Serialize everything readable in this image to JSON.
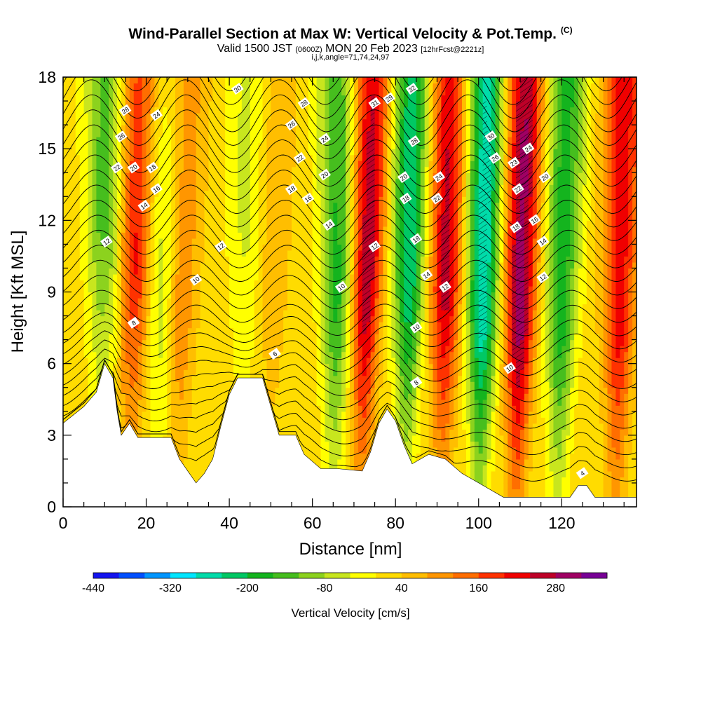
{
  "header": {
    "title": "Wind-Parallel Section at Max W: Vertical Velocity & Pot.Temp.",
    "title_unit": "(C)",
    "valid_prefix": "Valid 1500 JST",
    "valid_utc": "(0600Z)",
    "valid_date": "MON 20 Feb 2023",
    "valid_fcst": "[12hrFcst@2221z]",
    "indices": "i,j,k,angle=71,74,24,97"
  },
  "chart_data": {
    "type": "heatmap",
    "title": "Wind-Parallel Section at Max W: Vertical Velocity & Pot.Temp.",
    "xlabel": "Distance [nm]",
    "ylabel": "Height [Kft MSL]",
    "xlim": [
      0,
      138
    ],
    "ylim": [
      0,
      18
    ],
    "x_ticks": [
      0,
      20,
      40,
      60,
      80,
      100,
      120
    ],
    "y_ticks": [
      0,
      3,
      6,
      9,
      12,
      15,
      18
    ],
    "colorbar": {
      "label": "Vertical Velocity [cm/s]",
      "tick_labels": [
        "-440",
        "-320",
        "-200",
        "-80",
        "40",
        "160",
        "280"
      ],
      "tick_values": [
        -440,
        -320,
        -200,
        -80,
        40,
        160,
        280
      ],
      "levels": [
        -440,
        -400,
        -360,
        -320,
        -280,
        -240,
        -200,
        -160,
        -120,
        -80,
        -40,
        0,
        40,
        80,
        120,
        160,
        200,
        240,
        280,
        320
      ],
      "colors": [
        "#1414f0",
        "#0050ff",
        "#0096ff",
        "#00e6ff",
        "#00dcaa",
        "#00c864",
        "#14b41e",
        "#46be1e",
        "#8cd21e",
        "#c8e61e",
        "#ffff00",
        "#ffdc00",
        "#ffbe00",
        "#ff9600",
        "#ff6e00",
        "#ff3200",
        "#f00000",
        "#be0028",
        "#a00064",
        "#780096"
      ]
    },
    "terrain_kft": [
      [
        0,
        3.5
      ],
      [
        5,
        4.2
      ],
      [
        8,
        4.8
      ],
      [
        10,
        6.0
      ],
      [
        12,
        5.4
      ],
      [
        13,
        4.0
      ],
      [
        14,
        3.0
      ],
      [
        16,
        3.5
      ],
      [
        18,
        2.9
      ],
      [
        26,
        2.9
      ],
      [
        28,
        2.0
      ],
      [
        30,
        1.5
      ],
      [
        32,
        1.0
      ],
      [
        34,
        1.4
      ],
      [
        36,
        2.0
      ],
      [
        38,
        3.4
      ],
      [
        40,
        4.7
      ],
      [
        42,
        5.4
      ],
      [
        48,
        5.4
      ],
      [
        50,
        4.2
      ],
      [
        52,
        3.0
      ],
      [
        56,
        3.0
      ],
      [
        58,
        2.2
      ],
      [
        62,
        1.6
      ],
      [
        66,
        1.6
      ],
      [
        72,
        1.5
      ],
      [
        74,
        2.3
      ],
      [
        76,
        3.5
      ],
      [
        78,
        4.1
      ],
      [
        80,
        3.6
      ],
      [
        82,
        2.6
      ],
      [
        84,
        1.8
      ],
      [
        88,
        2.2
      ],
      [
        92,
        2.0
      ],
      [
        96,
        1.4
      ],
      [
        100,
        1.0
      ],
      [
        106,
        0.4
      ],
      [
        122,
        0.4
      ],
      [
        124,
        0.9
      ],
      [
        126,
        0.9
      ],
      [
        128,
        0.4
      ],
      [
        138,
        0.4
      ]
    ],
    "updrafts": [
      {
        "x": 17,
        "w": 200
      },
      {
        "x": 28,
        "w": 120
      },
      {
        "x": 50,
        "w": 60
      },
      {
        "x": 73,
        "w": 260
      },
      {
        "x": 92,
        "w": 240
      },
      {
        "x": 110,
        "w": 280
      },
      {
        "x": 134,
        "w": 200
      }
    ],
    "downdrafts": [
      {
        "x": 10,
        "w": -180
      },
      {
        "x": 24,
        "w": -120
      },
      {
        "x": 44,
        "w": -80
      },
      {
        "x": 66,
        "w": -200
      },
      {
        "x": 83,
        "w": -260
      },
      {
        "x": 101,
        "w": -300
      },
      {
        "x": 120,
        "w": -200
      }
    ],
    "theta_contours": {
      "levels": [
        6,
        8,
        10,
        12,
        14,
        16,
        18,
        20,
        22,
        24,
        26,
        28,
        30,
        32
      ],
      "labels": [
        {
          "text": "28",
          "x": 15,
          "y": 16.6
        },
        {
          "text": "26",
          "x": 14,
          "y": 15.5
        },
        {
          "text": "24",
          "x": 22.5,
          "y": 16.4
        },
        {
          "text": "22",
          "x": 13,
          "y": 14.2
        },
        {
          "text": "20",
          "x": 17,
          "y": 14.2
        },
        {
          "text": "18",
          "x": 21.5,
          "y": 14.2
        },
        {
          "text": "16",
          "x": 22.5,
          "y": 13.3
        },
        {
          "text": "14",
          "x": 19.5,
          "y": 12.6
        },
        {
          "text": "12",
          "x": 10.5,
          "y": 11.1
        },
        {
          "text": "12",
          "x": 38,
          "y": 10.9
        },
        {
          "text": "10",
          "x": 32,
          "y": 9.5
        },
        {
          "text": "8",
          "x": 17,
          "y": 7.7
        },
        {
          "text": "6",
          "x": 51,
          "y": 6.4
        },
        {
          "text": "30",
          "x": 42,
          "y": 17.5
        },
        {
          "text": "28",
          "x": 58,
          "y": 16.9
        },
        {
          "text": "26",
          "x": 55,
          "y": 16.0
        },
        {
          "text": "24",
          "x": 63,
          "y": 15.4
        },
        {
          "text": "22",
          "x": 57,
          "y": 14.6
        },
        {
          "text": "20",
          "x": 63,
          "y": 13.9
        },
        {
          "text": "18",
          "x": 55,
          "y": 13.3
        },
        {
          "text": "16",
          "x": 59,
          "y": 12.9
        },
        {
          "text": "14",
          "x": 64,
          "y": 11.8
        },
        {
          "text": "10",
          "x": 67,
          "y": 9.2
        },
        {
          "text": "12",
          "x": 75,
          "y": 10.9
        },
        {
          "text": "31",
          "x": 75,
          "y": 16.9
        },
        {
          "text": "29",
          "x": 78.5,
          "y": 17.1
        },
        {
          "text": "32",
          "x": 84,
          "y": 17.5
        },
        {
          "text": "28",
          "x": 84.5,
          "y": 15.3
        },
        {
          "text": "20",
          "x": 82,
          "y": 13.8
        },
        {
          "text": "18",
          "x": 82.5,
          "y": 12.9
        },
        {
          "text": "24",
          "x": 90.5,
          "y": 13.8
        },
        {
          "text": "22",
          "x": 90,
          "y": 12.9
        },
        {
          "text": "18",
          "x": 85,
          "y": 11.2
        },
        {
          "text": "14",
          "x": 87.5,
          "y": 9.7
        },
        {
          "text": "12",
          "x": 92,
          "y": 9.2
        },
        {
          "text": "10",
          "x": 85,
          "y": 7.5
        },
        {
          "text": "8",
          "x": 85,
          "y": 5.2
        },
        {
          "text": "30",
          "x": 103,
          "y": 15.5
        },
        {
          "text": "26",
          "x": 104,
          "y": 14.6
        },
        {
          "text": "23",
          "x": 108.5,
          "y": 14.4
        },
        {
          "text": "24",
          "x": 112,
          "y": 15.0
        },
        {
          "text": "22",
          "x": 109.5,
          "y": 13.3
        },
        {
          "text": "20",
          "x": 116,
          "y": 13.8
        },
        {
          "text": "18",
          "x": 109,
          "y": 11.7
        },
        {
          "text": "16",
          "x": 113.5,
          "y": 12.0
        },
        {
          "text": "14",
          "x": 115.5,
          "y": 11.1
        },
        {
          "text": "12",
          "x": 115.5,
          "y": 9.6
        },
        {
          "text": "10",
          "x": 107.5,
          "y": 5.8
        },
        {
          "text": "4",
          "x": 125,
          "y": 1.4
        }
      ]
    }
  }
}
